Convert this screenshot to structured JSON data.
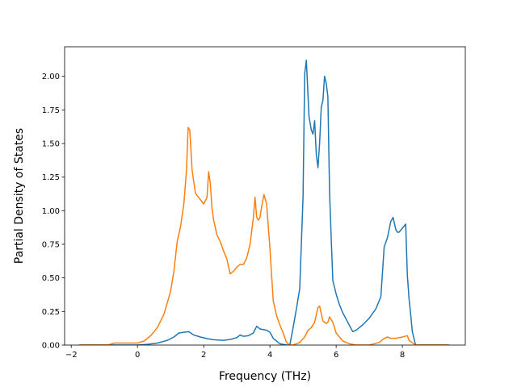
{
  "chart_data": {
    "type": "line",
    "title": "",
    "xlabel": "Frequency (THz)",
    "ylabel": "Partial Density of States",
    "xlim": [
      -2.2,
      9.9
    ],
    "ylim": [
      0.0,
      2.22
    ],
    "x_ticks": [
      -2,
      0,
      2,
      4,
      6,
      8
    ],
    "x_tick_labels": [
      "−2",
      "0",
      "2",
      "4",
      "6",
      "8"
    ],
    "y_ticks": [
      0.0,
      0.25,
      0.5,
      0.75,
      1.0,
      1.25,
      1.5,
      1.75,
      2.0
    ],
    "y_tick_labels": [
      "0.00",
      "0.25",
      "0.50",
      "0.75",
      "1.00",
      "1.25",
      "1.50",
      "1.75",
      "2.00"
    ],
    "grid": false,
    "series": [
      {
        "color": "#1f77b4",
        "x": [
          -1.75,
          0.0,
          0.3,
          0.6,
          0.9,
          1.1,
          1.25,
          1.4,
          1.55,
          1.7,
          1.9,
          2.1,
          2.3,
          2.6,
          2.8,
          3.0,
          3.1,
          3.2,
          3.35,
          3.5,
          3.6,
          3.7,
          3.9,
          4.0,
          4.1,
          4.3,
          4.5,
          4.6,
          4.7,
          4.8,
          4.9,
          5.0,
          5.05,
          5.1,
          5.18,
          5.25,
          5.3,
          5.35,
          5.4,
          5.45,
          5.5,
          5.55,
          5.6,
          5.65,
          5.7,
          5.75,
          5.8,
          5.85,
          5.9,
          6.0,
          6.1,
          6.2,
          6.35,
          6.5,
          6.6,
          6.8,
          7.0,
          7.2,
          7.35,
          7.45,
          7.55,
          7.65,
          7.72,
          7.8,
          7.85,
          7.9,
          8.0,
          8.1,
          8.15,
          8.2,
          8.25,
          8.3,
          8.4,
          8.5,
          9.4
        ],
        "values": [
          0.0,
          0.0,
          0.005,
          0.015,
          0.035,
          0.06,
          0.09,
          0.095,
          0.1,
          0.075,
          0.06,
          0.048,
          0.04,
          0.035,
          0.042,
          0.055,
          0.075,
          0.065,
          0.07,
          0.09,
          0.14,
          0.12,
          0.11,
          0.095,
          0.05,
          0.01,
          0.0,
          0.0,
          0.13,
          0.27,
          0.42,
          1.1,
          2.02,
          2.12,
          1.7,
          1.6,
          1.57,
          1.67,
          1.42,
          1.32,
          1.5,
          1.77,
          1.82,
          2.0,
          1.95,
          1.85,
          1.15,
          0.8,
          0.48,
          0.38,
          0.3,
          0.24,
          0.17,
          0.1,
          0.11,
          0.15,
          0.2,
          0.27,
          0.36,
          0.73,
          0.8,
          0.92,
          0.95,
          0.86,
          0.84,
          0.84,
          0.87,
          0.9,
          0.52,
          0.35,
          0.23,
          0.1,
          0.0,
          0.0,
          0.0
        ]
      },
      {
        "color": "#ff7f0e",
        "x": [
          -1.75,
          -0.9,
          -0.7,
          -0.5,
          0.0,
          0.2,
          0.4,
          0.6,
          0.8,
          1.0,
          1.1,
          1.2,
          1.3,
          1.4,
          1.48,
          1.53,
          1.58,
          1.65,
          1.75,
          2.0,
          2.1,
          2.15,
          2.2,
          2.25,
          2.3,
          2.4,
          2.5,
          2.6,
          2.7,
          2.8,
          2.9,
          3.0,
          3.1,
          3.2,
          3.3,
          3.4,
          3.5,
          3.55,
          3.6,
          3.65,
          3.7,
          3.75,
          3.82,
          3.9,
          4.0,
          4.05,
          4.1,
          4.2,
          4.3,
          4.4,
          4.5,
          4.6,
          4.7,
          4.9,
          5.05,
          5.15,
          5.25,
          5.35,
          5.45,
          5.5,
          5.6,
          5.7,
          5.75,
          5.8,
          5.9,
          6.0,
          6.2,
          6.4,
          6.6,
          7.0,
          7.3,
          7.45,
          7.55,
          7.65,
          7.8,
          8.0,
          8.15,
          8.2,
          8.4,
          9.4
        ],
        "values": [
          0.0,
          0.0,
          0.015,
          0.015,
          0.015,
          0.03,
          0.07,
          0.13,
          0.23,
          0.4,
          0.55,
          0.77,
          0.88,
          1.05,
          1.3,
          1.62,
          1.6,
          1.3,
          1.13,
          1.05,
          1.1,
          1.29,
          1.2,
          1.02,
          0.93,
          0.82,
          0.77,
          0.7,
          0.64,
          0.53,
          0.55,
          0.58,
          0.6,
          0.6,
          0.65,
          0.75,
          0.95,
          1.1,
          0.95,
          0.93,
          0.95,
          1.03,
          1.12,
          1.05,
          0.72,
          0.52,
          0.33,
          0.22,
          0.15,
          0.09,
          0.02,
          0.0,
          0.0,
          0.02,
          0.06,
          0.11,
          0.13,
          0.17,
          0.28,
          0.29,
          0.18,
          0.16,
          0.17,
          0.21,
          0.17,
          0.09,
          0.03,
          0.01,
          0.0,
          0.0,
          0.02,
          0.05,
          0.06,
          0.05,
          0.05,
          0.06,
          0.07,
          0.035,
          0.0,
          0.0
        ]
      }
    ]
  }
}
